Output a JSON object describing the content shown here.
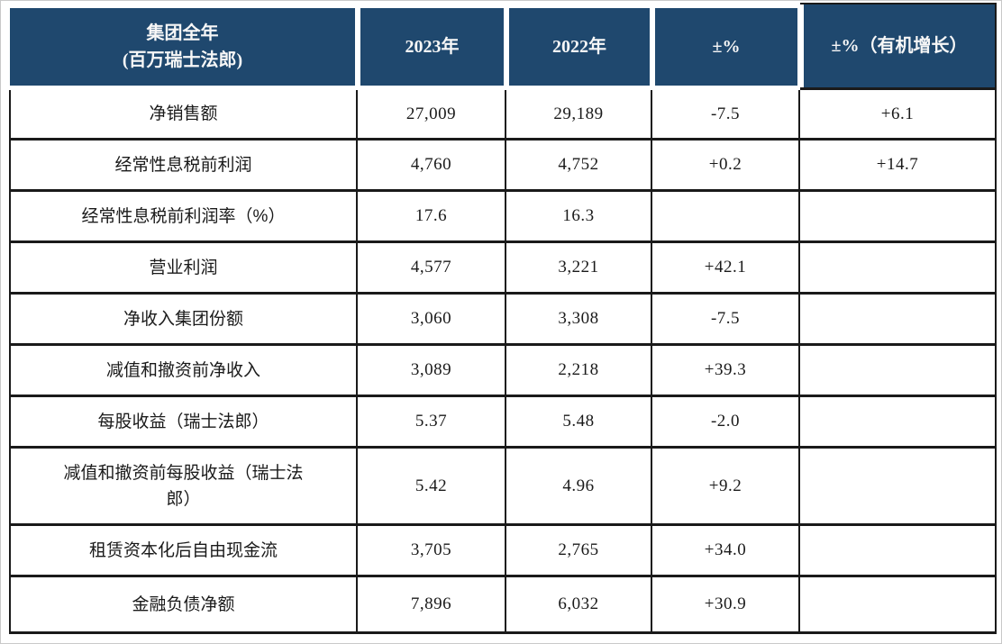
{
  "header": {
    "title_line1": "集团全年",
    "title_line2": "(百万瑞士法郎)",
    "col_2023": "2023年",
    "col_2022": "2022年",
    "col_pct": "±%",
    "col_organic": "±%（有机增长）"
  },
  "rows": [
    {
      "label": "净销售额",
      "v2023": "27,009",
      "v2022": "29,189",
      "pct": "-7.5",
      "organic": "+6.1"
    },
    {
      "label": "经常性息税前利润",
      "v2023": "4,760",
      "v2022": "4,752",
      "pct": "+0.2",
      "organic": "+14.7"
    },
    {
      "label": "经常性息税前利润率（%）",
      "v2023": "17.6",
      "v2022": "16.3",
      "pct": "",
      "organic": ""
    },
    {
      "label": "营业利润",
      "v2023": "4,577",
      "v2022": "3,221",
      "pct": "+42.1",
      "organic": ""
    },
    {
      "label": "净收入集团份额",
      "v2023": "3,060",
      "v2022": "3,308",
      "pct": "-7.5",
      "organic": ""
    },
    {
      "label": "减值和撤资前净收入",
      "v2023": "3,089",
      "v2022": "2,218",
      "pct": "+39.3",
      "organic": ""
    },
    {
      "label": "每股收益（瑞士法郎）",
      "v2023": "5.37",
      "v2022": "5.48",
      "pct": "-2.0",
      "organic": ""
    },
    {
      "label": "减值和撤资前每股收益（瑞士法\n郎）",
      "v2023": "5.42",
      "v2022": "4.96",
      "pct": "+9.2",
      "organic": ""
    },
    {
      "label": "租赁资本化后自由现金流",
      "v2023": "3,705",
      "v2022": "2,765",
      "pct": "+34.0",
      "organic": ""
    },
    {
      "label": "金融负债净额",
      "v2023": "7,896",
      "v2022": "6,032",
      "pct": "+30.9",
      "organic": ""
    }
  ],
  "colors": {
    "header_bg": "#1f486e",
    "header_text": "#f7f7f7",
    "border": "#1a1a1a",
    "body_text": "#1a1a1a"
  }
}
